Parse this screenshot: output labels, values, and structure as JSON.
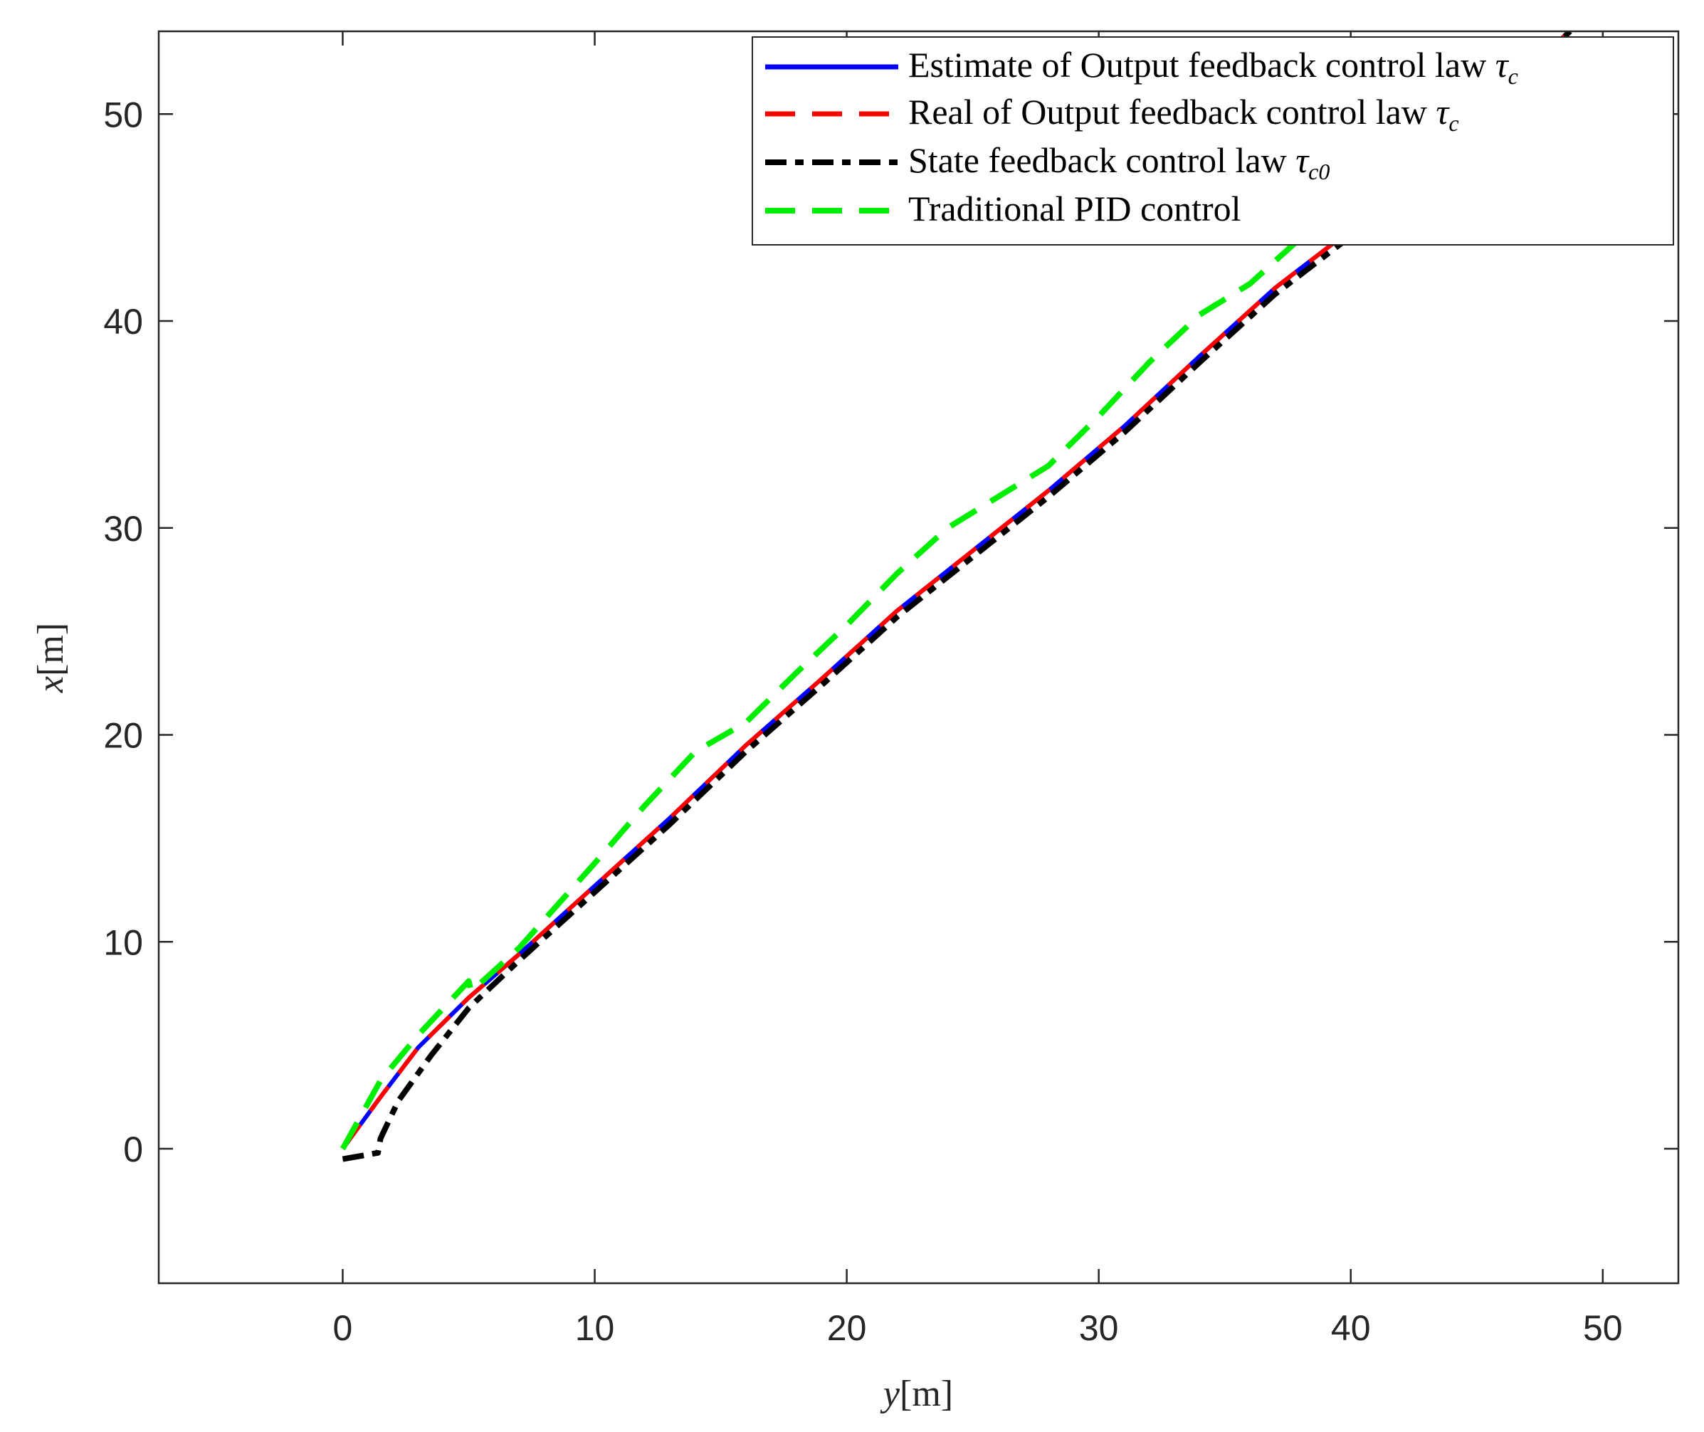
{
  "chart_data": {
    "type": "line",
    "xlabel": "y",
    "xlabel_unit": "[m]",
    "ylabel": "x",
    "ylabel_unit": "[m]",
    "xlim": [
      -7.3,
      53
    ],
    "ylim": [
      -6.5,
      54
    ],
    "xticks": [
      0,
      10,
      20,
      30,
      40,
      50
    ],
    "yticks": [
      0,
      10,
      20,
      30,
      40,
      50
    ],
    "xtick_labels": [
      "0",
      "10",
      "20",
      "30",
      "40",
      "50"
    ],
    "ytick_labels": [
      "0",
      "10",
      "20",
      "30",
      "40",
      "50"
    ],
    "grid": false,
    "legend_position": "top-right",
    "series": [
      {
        "name": "Estimate of Output feedback control law",
        "symbol": "τ",
        "subscript": "c",
        "color": "#0000ff",
        "style": "solid",
        "x": [
          0,
          1.5,
          3,
          5,
          7,
          10,
          13,
          16,
          19,
          22,
          25,
          28,
          31,
          34,
          37,
          40,
          43,
          46,
          48.7
        ],
        "y": [
          0,
          2.5,
          4.9,
          7.3,
          9.4,
          12.7,
          16.0,
          19.5,
          22.7,
          26.0,
          28.9,
          31.8,
          34.9,
          38.3,
          41.6,
          44.4,
          47.8,
          51.2,
          54
        ]
      },
      {
        "name": "Real of Output feedback control law",
        "symbol": "τ",
        "subscript": "c",
        "color": "#ff0000",
        "style": "dashed",
        "x": [
          0,
          1.5,
          3,
          5,
          7,
          10,
          13,
          16,
          19,
          22,
          25,
          28,
          31,
          34,
          37,
          40,
          43,
          46,
          48.7
        ],
        "y": [
          0,
          2.5,
          4.9,
          7.3,
          9.4,
          12.7,
          16.0,
          19.5,
          22.7,
          26.0,
          28.9,
          31.8,
          34.9,
          38.3,
          41.6,
          44.4,
          47.8,
          51.2,
          54
        ]
      },
      {
        "name": "State feedback control law",
        "symbol": "τ",
        "subscript": "c0",
        "color": "#000000",
        "style": "dashdot",
        "x": [
          0,
          1.4,
          1.5,
          2.2,
          3.5,
          5,
          7,
          10,
          13,
          16,
          19,
          22,
          25,
          28,
          31,
          34,
          37,
          40,
          43,
          46,
          48.7
        ],
        "y": [
          -0.5,
          -0.2,
          0.5,
          2.3,
          4.5,
          6.8,
          9.1,
          12.4,
          15.7,
          19.2,
          22.4,
          25.7,
          28.6,
          31.5,
          34.6,
          38.0,
          41.3,
          44.1,
          47.5,
          50.9,
          54
        ]
      },
      {
        "name": "Traditional PID control",
        "symbol": "",
        "subscript": "",
        "color": "#00ee00",
        "style": "dashed",
        "x": [
          0,
          1.5,
          3,
          5,
          5.1,
          7,
          10,
          12,
          14,
          16,
          18,
          20,
          22,
          24,
          26,
          28,
          30,
          32,
          34,
          36,
          38,
          40,
          42,
          44,
          46,
          48.7
        ],
        "y": [
          0,
          3.3,
          5.5,
          8.1,
          7.6,
          9.7,
          13.8,
          16.6,
          19.2,
          20.6,
          23.0,
          25.3,
          27.8,
          30.0,
          31.5,
          33.0,
          35.4,
          38.0,
          40.3,
          41.8,
          44.0,
          46.0,
          48.2,
          50.2,
          52.0,
          54
        ]
      }
    ]
  }
}
